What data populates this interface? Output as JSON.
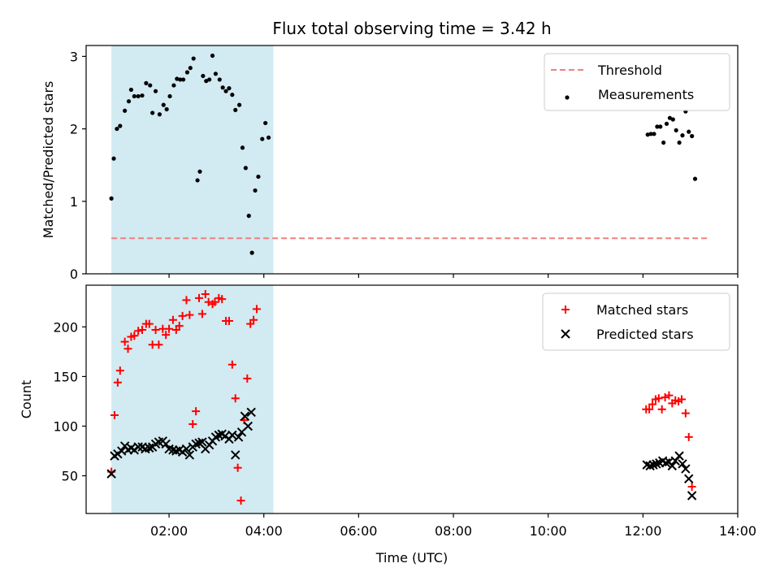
{
  "chart_data": {
    "type": "scatter",
    "title": "Flux total observing time = 3.42 h",
    "xlabel": "Time (UTC)",
    "x_unit": "hours UTC",
    "xlim": [
      "00:15",
      "14:00"
    ],
    "xticks": [
      "02:00",
      "04:00",
      "06:00",
      "08:00",
      "10:00",
      "12:00",
      "14:00"
    ],
    "shaded_interval": [
      "00:47",
      "04:12"
    ],
    "shade_color": "#add8e6",
    "panels": [
      {
        "name": "ratio",
        "ylabel": "Matched/Predicted stars",
        "ylim": [
          0,
          3.15
        ],
        "yticks": [
          0,
          1,
          2,
          3
        ],
        "legend_position": "upper-right",
        "threshold": {
          "name": "Threshold",
          "value": 0.49,
          "x": [
            "00:47",
            "13:25"
          ],
          "color": "#f08080",
          "style": "dashed"
        },
        "series": [
          {
            "name": "Measurements",
            "marker": "dot",
            "color": "#000000",
            "points": [
              [
                "00:47",
                1.04
              ],
              [
                "00:50",
                1.59
              ],
              [
                "00:54",
                2.0
              ],
              [
                "00:58",
                2.04
              ],
              [
                "01:04",
                2.25
              ],
              [
                "01:09",
                2.38
              ],
              [
                "01:12",
                2.54
              ],
              [
                "01:16",
                2.45
              ],
              [
                "01:21",
                2.45
              ],
              [
                "01:26",
                2.46
              ],
              [
                "01:31",
                2.63
              ],
              [
                "01:36",
                2.6
              ],
              [
                "01:39",
                2.22
              ],
              [
                "01:43",
                2.52
              ],
              [
                "01:48",
                2.2
              ],
              [
                "01:53",
                2.33
              ],
              [
                "01:57",
                2.27
              ],
              [
                "02:01",
                2.45
              ],
              [
                "02:06",
                2.6
              ],
              [
                "02:10",
                2.69
              ],
              [
                "02:14",
                2.68
              ],
              [
                "02:18",
                2.68
              ],
              [
                "02:23",
                2.78
              ],
              [
                "02:27",
                2.84
              ],
              [
                "02:31",
                2.97
              ],
              [
                "02:36",
                1.29
              ],
              [
                "02:39",
                1.41
              ],
              [
                "02:43",
                2.73
              ],
              [
                "02:47",
                2.66
              ],
              [
                "02:51",
                2.68
              ],
              [
                "02:55",
                3.01
              ],
              [
                "02:59",
                2.76
              ],
              [
                "03:04",
                2.68
              ],
              [
                "03:08",
                2.57
              ],
              [
                "03:12",
                2.52
              ],
              [
                "03:16",
                2.56
              ],
              [
                "03:20",
                2.47
              ],
              [
                "03:24",
                2.26
              ],
              [
                "03:29",
                2.33
              ],
              [
                "03:33",
                1.74
              ],
              [
                "03:37",
                1.46
              ],
              [
                "03:41",
                0.8
              ],
              [
                "03:45",
                0.29
              ],
              [
                "03:49",
                1.15
              ],
              [
                "03:53",
                1.34
              ],
              [
                "03:58",
                1.86
              ],
              [
                "04:02",
                2.08
              ],
              [
                "04:06",
                1.88
              ],
              [
                "12:06",
                1.92
              ],
              [
                "12:10",
                1.93
              ],
              [
                "12:14",
                1.93
              ],
              [
                "12:18",
                2.03
              ],
              [
                "12:22",
                2.03
              ],
              [
                "12:26",
                1.81
              ],
              [
                "12:30",
                2.07
              ],
              [
                "12:34",
                2.15
              ],
              [
                "12:38",
                2.13
              ],
              [
                "12:42",
                1.98
              ],
              [
                "12:46",
                1.81
              ],
              [
                "12:50",
                1.91
              ],
              [
                "12:54",
                2.24
              ],
              [
                "12:58",
                1.96
              ],
              [
                "13:02",
                1.9
              ],
              [
                "13:06",
                1.31
              ]
            ]
          }
        ]
      },
      {
        "name": "count",
        "ylabel": "Count",
        "ylim": [
          12,
          242
        ],
        "yticks": [
          50,
          100,
          150,
          200
        ],
        "legend_position": "upper-right",
        "series": [
          {
            "name": "Matched stars",
            "marker": "plus",
            "color": "#ff0000",
            "points": [
              [
                "00:47",
                54
              ],
              [
                "00:51",
                111
              ],
              [
                "00:55",
                144
              ],
              [
                "00:58",
                156
              ],
              [
                "01:04",
                185
              ],
              [
                "01:08",
                178
              ],
              [
                "01:12",
                190
              ],
              [
                "01:16",
                191
              ],
              [
                "01:21",
                196
              ],
              [
                "01:26",
                197
              ],
              [
                "01:31",
                203
              ],
              [
                "01:35",
                203
              ],
              [
                "01:39",
                182
              ],
              [
                "01:43",
                197
              ],
              [
                "01:47",
                182
              ],
              [
                "01:52",
                198
              ],
              [
                "01:56",
                192
              ],
              [
                "02:00",
                198
              ],
              [
                "02:05",
                207
              ],
              [
                "02:09",
                197
              ],
              [
                "02:13",
                201
              ],
              [
                "02:17",
                211
              ],
              [
                "02:22",
                227
              ],
              [
                "02:26",
                212
              ],
              [
                "02:30",
                102
              ],
              [
                "02:34",
                115
              ],
              [
                "02:38",
                229
              ],
              [
                "02:42",
                213
              ],
              [
                "02:46",
                233
              ],
              [
                "02:50",
                225
              ],
              [
                "02:55",
                223
              ],
              [
                "02:58",
                225
              ],
              [
                "03:03",
                229
              ],
              [
                "03:07",
                228
              ],
              [
                "03:12",
                206
              ],
              [
                "03:16",
                206
              ],
              [
                "03:20",
                162
              ],
              [
                "03:24",
                128
              ],
              [
                "03:27",
                58
              ],
              [
                "03:31",
                25
              ],
              [
                "03:35",
                106
              ],
              [
                "03:39",
                148
              ],
              [
                "03:43",
                203
              ],
              [
                "03:47",
                207
              ],
              [
                "03:51",
                218
              ],
              [
                "12:04",
                117
              ],
              [
                "12:08",
                117
              ],
              [
                "12:12",
                122
              ],
              [
                "12:16",
                127
              ],
              [
                "12:20",
                128
              ],
              [
                "12:24",
                117
              ],
              [
                "12:28",
                129
              ],
              [
                "12:33",
                131
              ],
              [
                "12:37",
                123
              ],
              [
                "12:41",
                126
              ],
              [
                "12:45",
                125
              ],
              [
                "12:49",
                127
              ],
              [
                "12:54",
                113
              ],
              [
                "12:58",
                89
              ],
              [
                "13:02",
                39
              ]
            ]
          },
          {
            "name": "Predicted stars",
            "marker": "x",
            "color": "#000000",
            "points": [
              [
                "00:47",
                52
              ],
              [
                "00:51",
                70
              ],
              [
                "00:55",
                72
              ],
              [
                "01:00",
                75
              ],
              [
                "01:04",
                80
              ],
              [
                "01:08",
                76
              ],
              [
                "01:12",
                78
              ],
              [
                "01:16",
                76
              ],
              [
                "01:21",
                79
              ],
              [
                "01:26",
                79
              ],
              [
                "01:30",
                77
              ],
              [
                "01:35",
                78
              ],
              [
                "01:39",
                79
              ],
              [
                "01:43",
                82
              ],
              [
                "01:47",
                84
              ],
              [
                "01:52",
                85
              ],
              [
                "01:56",
                82
              ],
              [
                "02:00",
                77
              ],
              [
                "02:05",
                76
              ],
              [
                "02:09",
                75
              ],
              [
                "02:13",
                76
              ],
              [
                "02:17",
                74
              ],
              [
                "02:22",
                77
              ],
              [
                "02:26",
                71
              ],
              [
                "02:30",
                79
              ],
              [
                "02:34",
                82
              ],
              [
                "02:38",
                83
              ],
              [
                "02:42",
                84
              ],
              [
                "02:46",
                77
              ],
              [
                "02:51",
                81
              ],
              [
                "02:55",
                85
              ],
              [
                "02:59",
                89
              ],
              [
                "03:03",
                91
              ],
              [
                "03:07",
                92
              ],
              [
                "03:11",
                90
              ],
              [
                "03:16",
                87
              ],
              [
                "03:20",
                91
              ],
              [
                "03:24",
                71
              ],
              [
                "03:28",
                89
              ],
              [
                "03:32",
                94
              ],
              [
                "03:36",
                110
              ],
              [
                "03:40",
                100
              ],
              [
                "03:44",
                114
              ],
              [
                "12:05",
                61
              ],
              [
                "12:09",
                60
              ],
              [
                "12:13",
                61
              ],
              [
                "12:17",
                62
              ],
              [
                "12:21",
                63
              ],
              [
                "12:25",
                65
              ],
              [
                "12:29",
                63
              ],
              [
                "12:33",
                64
              ],
              [
                "12:37",
                60
              ],
              [
                "12:41",
                65
              ],
              [
                "12:46",
                70
              ],
              [
                "12:50",
                62
              ],
              [
                "12:54",
                57
              ],
              [
                "12:58",
                47
              ],
              [
                "13:02",
                30
              ]
            ]
          }
        ]
      }
    ]
  }
}
